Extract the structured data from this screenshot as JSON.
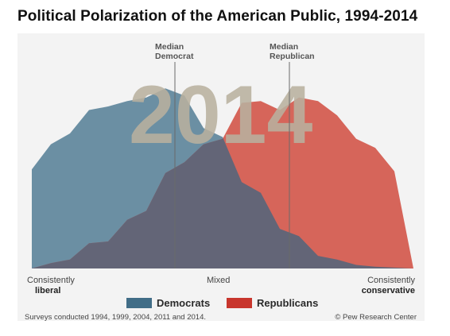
{
  "title": "Political Polarization of the American Public, 1994-2014",
  "year_label": "2014",
  "medians": [
    {
      "line1": "Median",
      "line2": "Democrat",
      "x": -2.5
    },
    {
      "line1": "Median",
      "line2": "Republican",
      "x": 3.5
    }
  ],
  "axis": {
    "left_line1": "Consistently",
    "left_line2": "liberal",
    "center": "Mixed",
    "right_line1": "Consistently",
    "right_line2": "conservative"
  },
  "legend": [
    {
      "label": "Democrats",
      "color": "#416d87"
    },
    {
      "label": "Republicans",
      "color": "#c8362d"
    }
  ],
  "footer": {
    "source_note": "Surveys conducted 1994, 1999, 2004, 2011 and 2014.",
    "credit": "© Pew Research Center"
  },
  "colors": {
    "democrats": "#6b8fa3",
    "republicans": "#d6655a",
    "overlap": "#636577",
    "background": "#f3f3f3"
  },
  "chart_data": {
    "type": "area",
    "x": [
      -10,
      -9,
      -8,
      -7,
      -6,
      -5,
      -4,
      -3,
      -2,
      -1,
      0,
      1,
      2,
      3,
      4,
      5,
      6,
      7,
      8,
      9,
      10
    ],
    "xlim": [
      -10,
      10
    ],
    "ylim": [
      0,
      12
    ],
    "series": [
      {
        "name": "Democrats",
        "values": [
          5.5,
          6.9,
          7.5,
          8.8,
          9.0,
          9.3,
          9.5,
          10.0,
          9.6,
          7.8,
          7.3,
          4.8,
          4.2,
          2.2,
          1.8,
          0.7,
          0.5,
          0.2,
          0.1,
          0.05,
          0.0
        ]
      },
      {
        "name": "Republicans",
        "values": [
          0.0,
          0.3,
          0.5,
          1.4,
          1.5,
          2.7,
          3.2,
          5.3,
          5.9,
          6.9,
          7.2,
          9.2,
          9.3,
          8.8,
          9.5,
          9.3,
          8.5,
          7.2,
          6.7,
          5.4,
          0.0
        ]
      }
    ]
  }
}
